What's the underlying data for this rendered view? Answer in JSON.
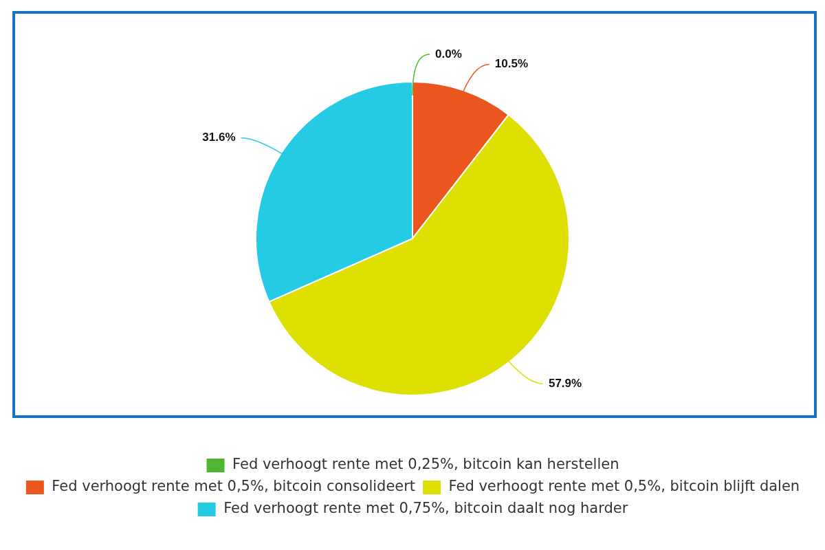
{
  "chart_data": {
    "type": "pie",
    "categories": [
      "Fed verhoogt rente met 0,25%, bitcoin kan herstellen",
      "Fed verhoogt rente met 0,5%, bitcoin consolideert",
      "Fed verhoogt rente met 0,5%, bitcoin blijft dalen",
      "Fed verhoogt rente met 0,75%, bitcoin daalt nog harder"
    ],
    "values": [
      0.0,
      10.5,
      57.9,
      31.6
    ],
    "colors": [
      "#4fb534",
      "#eb561f",
      "#dde000",
      "#25cbe5"
    ],
    "value_labels": [
      "0.0%",
      "10.5%",
      "57.9%",
      "31.6%"
    ],
    "legend": "bottom"
  }
}
